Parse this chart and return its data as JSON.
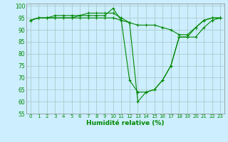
{
  "title": "",
  "xlabel": "Humidité relative (%)",
  "ylabel": "",
  "background_color": "#cceeff",
  "grid_color": "#aacccc",
  "line_color": "#008800",
  "xlim": [
    -0.5,
    23.5
  ],
  "ylim": [
    55,
    101
  ],
  "yticks": [
    55,
    60,
    65,
    70,
    75,
    80,
    85,
    90,
    95,
    100
  ],
  "xticks": [
    0,
    1,
    2,
    3,
    4,
    5,
    6,
    7,
    8,
    9,
    10,
    11,
    12,
    13,
    14,
    15,
    16,
    17,
    18,
    19,
    20,
    21,
    22,
    23
  ],
  "series": [
    [
      94,
      95,
      95,
      96,
      96,
      96,
      96,
      97,
      97,
      97,
      97,
      95,
      93,
      92,
      92,
      92,
      91,
      90,
      88,
      88,
      91,
      94,
      95,
      95
    ],
    [
      94,
      95,
      95,
      95,
      95,
      95,
      96,
      96,
      96,
      96,
      99,
      94,
      69,
      64,
      64,
      65,
      69,
      75,
      87,
      87,
      87,
      91,
      94,
      95
    ],
    [
      94,
      95,
      95,
      95,
      95,
      95,
      95,
      95,
      95,
      95,
      95,
      94,
      93,
      60,
      64,
      65,
      69,
      75,
      87,
      87,
      91,
      94,
      95,
      95
    ]
  ]
}
